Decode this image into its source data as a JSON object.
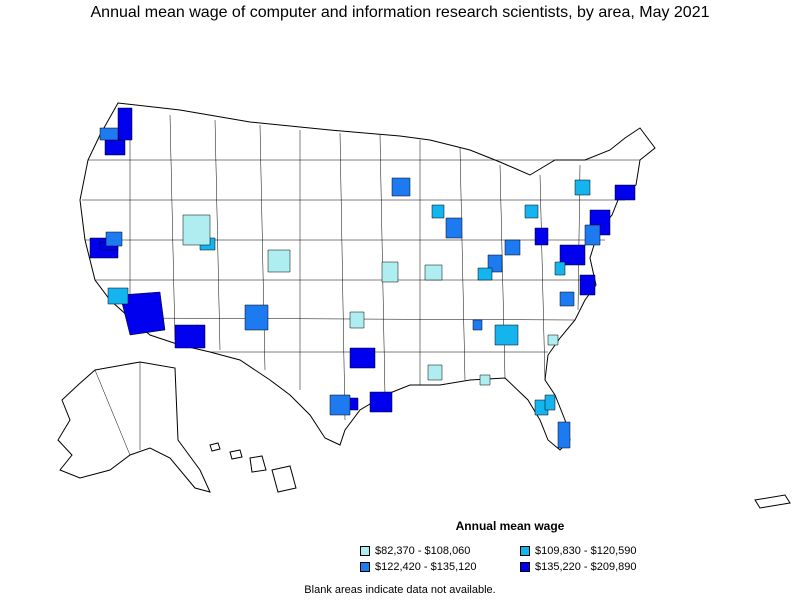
{
  "title": "Annual mean wage of computer and information research scientists, by area, May 2021",
  "legend": {
    "title": "Annual mean wage",
    "items": [
      {
        "label": "$82,370 - $108,060",
        "color": "#aeeef0"
      },
      {
        "label": "$109,830 - $120,590",
        "color": "#14b4ee"
      },
      {
        "label": "$122,420 - $135,120",
        "color": "#1e7af0"
      },
      {
        "label": "$135,220 - $209,890",
        "color": "#0000ee"
      }
    ]
  },
  "footnote": "Blank areas indicate data not available.",
  "colors": {
    "outline": "#000000",
    "background": "#ffffff"
  }
}
